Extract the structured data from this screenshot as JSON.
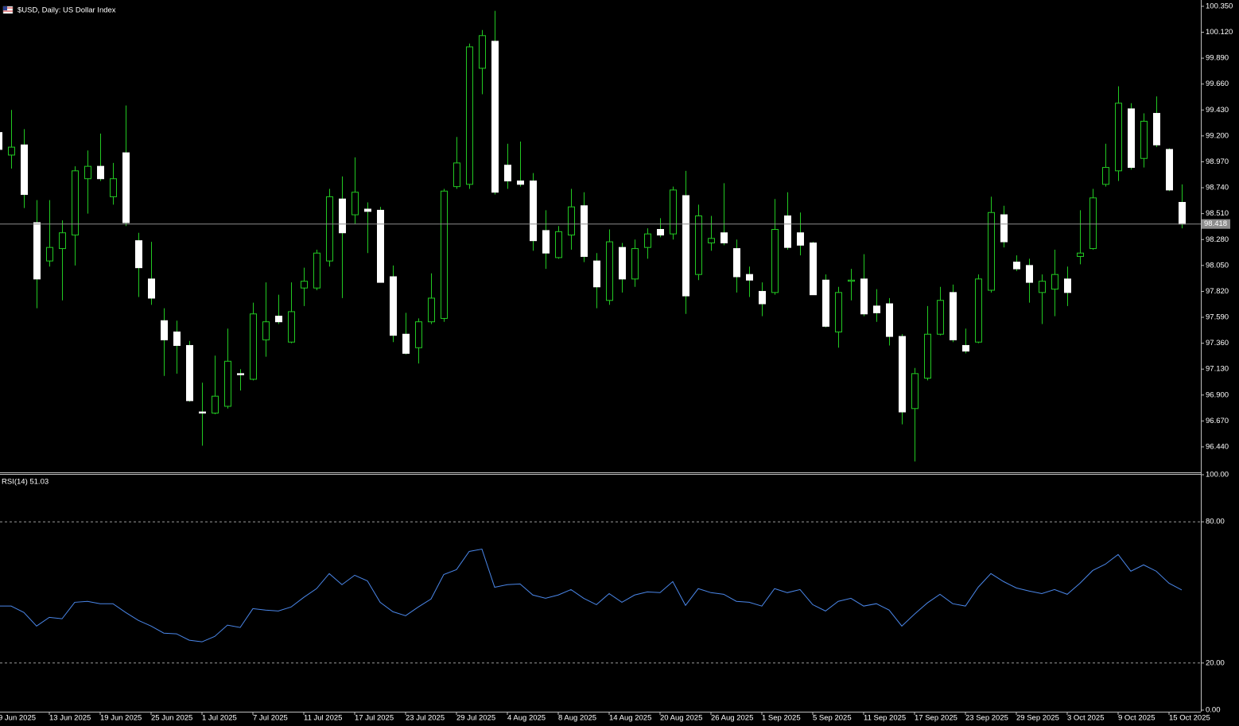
{
  "chart_data": [
    {
      "type": "candlestick",
      "title": "$USD, Daily:  US Dollar Index",
      "categories": [
        "9 Jun 2025",
        null,
        null,
        null,
        "13 Jun 2025",
        null,
        null,
        null,
        "19 Jun 2025",
        null,
        null,
        null,
        "25 Jun 2025",
        null,
        null,
        null,
        "1 Jul 2025",
        null,
        null,
        null,
        "7 Jul 2025",
        null,
        null,
        null,
        "11 Jul 2025",
        null,
        null,
        null,
        "17 Jul 2025",
        null,
        null,
        null,
        "23 Jul 2025",
        null,
        null,
        null,
        "29 Jul 2025",
        null,
        null,
        null,
        "4 Aug 2025",
        null,
        null,
        null,
        "8 Aug 2025",
        null,
        null,
        null,
        "14 Aug 2025",
        null,
        null,
        null,
        "20 Aug 2025",
        null,
        null,
        null,
        "26 Aug 2025",
        null,
        null,
        null,
        "1 Sep 2025",
        null,
        null,
        null,
        "5 Sep 2025",
        null,
        null,
        null,
        "11 Sep 2025",
        null,
        null,
        null,
        "17 Sep 2025",
        null,
        null,
        null,
        "23 Sep 2025",
        null,
        null,
        null,
        "29 Sep 2025",
        null,
        null,
        null,
        "3 Oct 2025",
        null,
        null,
        null,
        "9 Oct 2025",
        null,
        null,
        null,
        "15 Oct 2025",
        null
      ],
      "open": [
        99.23,
        99.03,
        99.12,
        98.43,
        98.09,
        98.2,
        98.32,
        98.82,
        98.93,
        98.66,
        99.05,
        98.27,
        97.93,
        97.56,
        97.46,
        97.34,
        96.75,
        96.74,
        96.8,
        97.09,
        97.04,
        97.39,
        97.6,
        97.37,
        97.85,
        97.85,
        98.09,
        98.64,
        98.5,
        98.55,
        98.54,
        97.95,
        97.44,
        97.32,
        97.55,
        97.58,
        98.75,
        98.77,
        99.8,
        100.04,
        98.94,
        98.8,
        98.8,
        98.36,
        98.12,
        98.32,
        98.58,
        98.09,
        97.74,
        98.21,
        97.93,
        98.21,
        98.37,
        98.33,
        98.67,
        97.97,
        98.25,
        98.34,
        98.2,
        97.97,
        97.82,
        97.81,
        98.49,
        98.34,
        98.25,
        97.92,
        97.46,
        97.91,
        97.93,
        97.69,
        97.71,
        97.42,
        96.78,
        97.05,
        97.44,
        97.81,
        97.34,
        97.37,
        97.83,
        98.5,
        98.08,
        98.05,
        97.81,
        97.84,
        97.93,
        98.13,
        98.2,
        98.77,
        98.89,
        99.44,
        99.0,
        99.4,
        99.08,
        98.61
      ],
      "high": [
        99.3,
        99.43,
        99.26,
        98.63,
        98.63,
        98.45,
        98.93,
        99.07,
        99.22,
        98.96,
        99.47,
        98.34,
        98.26,
        97.67,
        97.56,
        97.38,
        97.01,
        97.25,
        97.49,
        97.13,
        97.72,
        97.9,
        97.79,
        97.9,
        98.03,
        98.19,
        98.73,
        98.84,
        99.01,
        98.61,
        98.57,
        98.05,
        97.63,
        97.58,
        97.98,
        98.73,
        99.19,
        100.02,
        100.14,
        100.31,
        99.13,
        99.15,
        98.87,
        98.54,
        98.4,
        98.73,
        98.7,
        98.16,
        98.37,
        98.25,
        98.28,
        98.38,
        98.47,
        98.75,
        98.89,
        98.59,
        98.49,
        98.78,
        98.28,
        98.04,
        97.9,
        98.64,
        98.7,
        98.52,
        98.26,
        97.97,
        97.86,
        98.02,
        98.15,
        97.84,
        97.76,
        97.44,
        97.14,
        97.69,
        97.86,
        97.88,
        97.49,
        97.97,
        98.66,
        98.58,
        98.14,
        98.11,
        97.97,
        98.19,
        98.04,
        98.54,
        98.73,
        99.13,
        99.64,
        99.49,
        99.4,
        99.55,
        99.09,
        98.77
      ],
      "low": [
        99.05,
        98.91,
        98.56,
        97.67,
        98.04,
        97.74,
        98.05,
        98.51,
        98.8,
        98.59,
        98.4,
        97.77,
        97.7,
        97.07,
        97.09,
        96.84,
        96.45,
        96.73,
        96.78,
        96.94,
        97.03,
        97.24,
        97.53,
        97.36,
        97.69,
        97.83,
        98.04,
        97.76,
        98.42,
        98.16,
        97.9,
        97.37,
        97.26,
        97.18,
        97.53,
        97.55,
        98.73,
        98.73,
        99.57,
        98.68,
        98.73,
        98.75,
        98.18,
        98.02,
        98.11,
        98.19,
        98.08,
        97.67,
        97.7,
        97.81,
        97.86,
        98.11,
        98.3,
        98.28,
        97.62,
        97.92,
        98.18,
        98.23,
        97.81,
        97.77,
        97.6,
        97.79,
        98.19,
        98.14,
        97.79,
        97.5,
        97.32,
        97.74,
        97.6,
        97.55,
        97.34,
        96.64,
        96.31,
        97.03,
        97.43,
        97.37,
        97.27,
        97.36,
        97.81,
        98.21,
        98.0,
        97.72,
        97.53,
        97.6,
        97.69,
        98.06,
        98.19,
        98.75,
        98.8,
        98.9,
        98.92,
        99.1,
        98.71,
        98.38
      ],
      "close": [
        99.08,
        99.1,
        98.68,
        97.93,
        98.21,
        98.34,
        98.89,
        98.93,
        98.82,
        98.82,
        98.43,
        98.03,
        97.76,
        97.39,
        97.34,
        96.85,
        96.74,
        96.89,
        97.2,
        97.08,
        97.62,
        97.55,
        97.55,
        97.64,
        97.91,
        98.16,
        98.66,
        98.34,
        98.7,
        98.53,
        97.9,
        97.43,
        97.27,
        97.55,
        97.76,
        98.71,
        98.96,
        99.99,
        100.09,
        98.7,
        98.8,
        98.77,
        98.27,
        98.16,
        98.35,
        98.57,
        98.13,
        97.86,
        98.26,
        97.93,
        98.2,
        98.33,
        98.32,
        98.72,
        97.78,
        98.49,
        98.29,
        98.25,
        97.95,
        97.92,
        97.71,
        98.37,
        98.21,
        98.23,
        97.79,
        97.51,
        97.81,
        97.92,
        97.62,
        97.63,
        97.42,
        96.75,
        97.09,
        97.44,
        97.74,
        97.39,
        97.29,
        97.93,
        98.52,
        98.26,
        98.02,
        97.9,
        97.91,
        97.97,
        97.81,
        98.16,
        98.65,
        98.92,
        99.49,
        98.92,
        99.33,
        99.12,
        98.72,
        98.418
      ],
      "last_price": 98.418,
      "ylim": [
        96.221,
        100.399
      ],
      "yticks": [
        {
          "value": 100.35,
          "label": "100.350"
        },
        {
          "value": 100.12,
          "label": "100.120"
        },
        {
          "value": 99.89,
          "label": "99.890"
        },
        {
          "value": 99.66,
          "label": "99.660"
        },
        {
          "value": 99.43,
          "label": "99.430"
        },
        {
          "value": 99.2,
          "label": "99.200"
        },
        {
          "value": 98.97,
          "label": "98.970"
        },
        {
          "value": 98.74,
          "label": "98.740"
        },
        {
          "value": 98.51,
          "label": "98.510"
        },
        {
          "value": 98.28,
          "label": "98.280"
        },
        {
          "value": 98.05,
          "label": "98.050"
        },
        {
          "value": 97.82,
          "label": "97.820"
        },
        {
          "value": 97.59,
          "label": "97.590"
        },
        {
          "value": 97.36,
          "label": "97.360"
        },
        {
          "value": 97.13,
          "label": "97.130"
        },
        {
          "value": 96.9,
          "label": "96.900"
        },
        {
          "value": 96.67,
          "label": "96.670"
        },
        {
          "value": 96.44,
          "label": "96.440"
        }
      ],
      "up_color": "#000000",
      "down_color": "#ffffff",
      "wick_color": "#22c922",
      "last_line_color": "#8c8c8c"
    },
    {
      "type": "line",
      "title": "RSI(14) 51.03",
      "series": [
        {
          "color": "#4a86e8",
          "values": [
            44.2,
            44.2,
            41.5,
            35.7,
            39.4,
            38.8,
            45.8,
            46.2,
            45.2,
            45.2,
            41.5,
            38.1,
            35.7,
            32.7,
            32.4,
            29.7,
            29.0,
            31.3,
            36.1,
            35.1,
            43.1,
            42.5,
            42.1,
            43.8,
            47.9,
            51.6,
            58.0,
            53.3,
            57.3,
            54.9,
            45.8,
            41.8,
            40.1,
            43.8,
            47.2,
            57.6,
            59.7,
            67.4,
            68.4,
            52.2,
            53.3,
            53.6,
            48.9,
            47.5,
            48.9,
            51.2,
            47.5,
            44.8,
            49.5,
            45.8,
            48.9,
            50.2,
            49.9,
            54.6,
            44.5,
            51.6,
            49.9,
            49.2,
            46.2,
            45.8,
            44.2,
            51.6,
            49.9,
            51.2,
            44.8,
            42.1,
            46.2,
            47.5,
            44.2,
            45.2,
            42.5,
            35.7,
            40.8,
            45.5,
            49.2,
            45.2,
            44.2,
            52.2,
            58.0,
            54.6,
            51.9,
            50.6,
            49.5,
            51.2,
            49.2,
            53.9,
            59.3,
            62.0,
            66.1,
            59.0,
            61.7,
            59.0,
            53.9,
            51.03
          ]
        }
      ],
      "ylim": [
        0,
        100
      ],
      "yticks": [
        {
          "value": 100,
          "label": "100.00"
        },
        {
          "value": 80,
          "label": "80.00"
        },
        {
          "value": 20,
          "label": "20.00"
        },
        {
          "value": 0,
          "label": "0.00"
        }
      ],
      "levels": [
        80,
        20
      ],
      "level_color": "#9a9a9a"
    }
  ]
}
